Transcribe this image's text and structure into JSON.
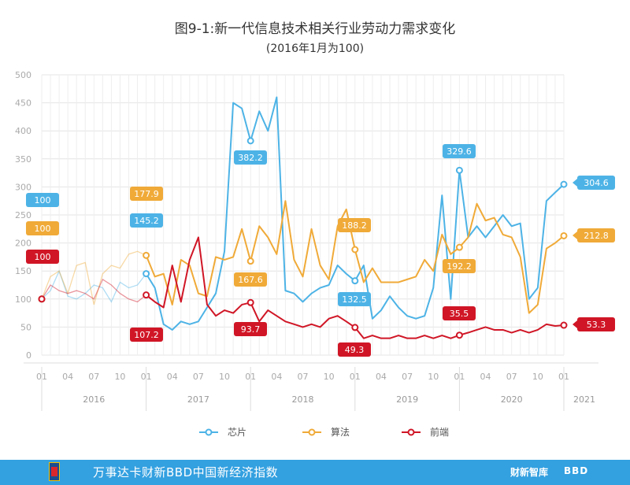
{
  "chart_data": {
    "type": "line",
    "title": "图9-1:新一代信息技术相关行业劳动力需求变化",
    "subtitle": "(2016年1月为100)",
    "ylim": [
      0,
      500
    ],
    "yticks": [
      0,
      50,
      100,
      150,
      200,
      250,
      300,
      350,
      400,
      450,
      500
    ],
    "month_ticks": [
      "01",
      "04",
      "07",
      "10",
      "01",
      "04",
      "07",
      "10",
      "01",
      "04",
      "07",
      "10",
      "01",
      "04",
      "07",
      "10",
      "01",
      "04",
      "07",
      "10",
      "01"
    ],
    "years": [
      "2016",
      "2017",
      "2018",
      "2019",
      "2020",
      "2021"
    ],
    "grid": true,
    "legend_position": "bottom",
    "series": [
      {
        "name": "芯片",
        "color": "#4db3e6",
        "values": [
          100,
          115,
          150,
          105,
          100,
          110,
          125,
          120,
          95,
          130,
          120,
          125,
          145.2,
          120,
          55,
          45,
          60,
          55,
          60,
          85,
          110,
          185,
          450,
          440,
          382.2,
          435,
          400,
          460,
          115,
          110,
          95,
          110,
          120,
          125,
          160,
          145,
          132.5,
          160,
          65,
          80,
          105,
          85,
          70,
          65,
          70,
          120,
          285,
          100,
          329.6,
          210,
          230,
          210,
          230,
          250,
          230,
          235,
          100,
          120,
          275,
          290,
          304.6
        ]
      },
      {
        "name": "算法",
        "color": "#f0aa38",
        "values": [
          100,
          140,
          150,
          110,
          160,
          165,
          90,
          145,
          160,
          155,
          180,
          185,
          177.9,
          140,
          145,
          90,
          170,
          160,
          110,
          105,
          175,
          170,
          175,
          225,
          167.6,
          230,
          210,
          180,
          275,
          170,
          140,
          225,
          160,
          135,
          230,
          260,
          188.2,
          130,
          155,
          130,
          130,
          130,
          135,
          140,
          170,
          150,
          215,
          180,
          192.2,
          210,
          270,
          240,
          245,
          215,
          210,
          175,
          75,
          90,
          190,
          200,
          212.8
        ]
      },
      {
        "name": "前端",
        "color": "#d01626",
        "values": [
          100,
          125,
          115,
          110,
          115,
          110,
          100,
          135,
          125,
          110,
          100,
          95,
          107.2,
          95,
          85,
          160,
          95,
          170,
          210,
          90,
          70,
          80,
          75,
          90,
          93.7,
          60,
          80,
          70,
          60,
          55,
          50,
          55,
          50,
          65,
          70,
          60,
          49.3,
          30,
          35,
          30,
          30,
          35,
          30,
          30,
          35,
          30,
          35,
          30,
          35.5,
          40,
          45,
          50,
          45,
          45,
          40,
          45,
          40,
          45,
          55,
          52,
          53.3
        ]
      }
    ],
    "annotations": [
      {
        "series": 0,
        "index": 0,
        "text": "100"
      },
      {
        "series": 1,
        "index": 0,
        "text": "100"
      },
      {
        "series": 2,
        "index": 0,
        "text": "100"
      },
      {
        "series": 1,
        "index": 12,
        "text": "177.9"
      },
      {
        "series": 0,
        "index": 12,
        "text": "145.2"
      },
      {
        "series": 2,
        "index": 12,
        "text": "107.2"
      },
      {
        "series": 0,
        "index": 24,
        "text": "382.2"
      },
      {
        "series": 1,
        "index": 24,
        "text": "167.6"
      },
      {
        "series": 2,
        "index": 24,
        "text": "93.7"
      },
      {
        "series": 1,
        "index": 36,
        "text": "188.2"
      },
      {
        "series": 0,
        "index": 36,
        "text": "132.5"
      },
      {
        "series": 2,
        "index": 36,
        "text": "49.3"
      },
      {
        "series": 0,
        "index": 48,
        "text": "329.6"
      },
      {
        "series": 1,
        "index": 48,
        "text": "192.2"
      },
      {
        "series": 2,
        "index": 48,
        "text": "35.5"
      },
      {
        "series": 0,
        "index": 60,
        "text": "304.6"
      },
      {
        "series": 1,
        "index": 60,
        "text": "212.8"
      },
      {
        "series": 2,
        "index": 60,
        "text": "53.3"
      }
    ]
  },
  "footer": {
    "title": "万事达卡财新BBD中国新经济指数",
    "brand_caixin": "财新智库",
    "brand_bbd": "BBD"
  }
}
